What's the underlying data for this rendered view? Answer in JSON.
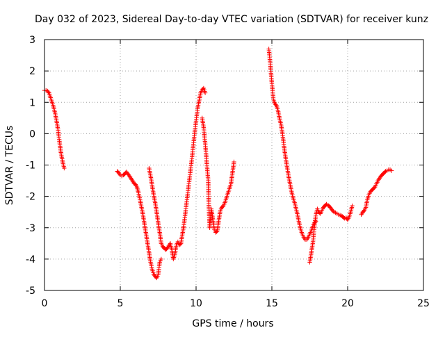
{
  "chart_data": {
    "type": "scatter",
    "title": "Day 032 of 2023, Sidereal Day-to-day VTEC variation (SDTVAR) for receiver kunz",
    "xlabel": "GPS time / hours",
    "ylabel": "SDTVAR / TECUs",
    "xlim": [
      0,
      25
    ],
    "ylim": [
      -5,
      3
    ],
    "x_ticks": [
      0,
      5,
      10,
      15,
      20,
      25
    ],
    "y_ticks": [
      -5,
      -4,
      -3,
      -2,
      -1,
      0,
      1,
      2,
      3
    ],
    "x_tick_labels": [
      "0",
      "5",
      "10",
      "15",
      "20",
      "25"
    ],
    "y_tick_labels": [
      "-5",
      "-4",
      "-3",
      "-2",
      "-1",
      "0",
      "1",
      "2",
      "3"
    ],
    "grid": true,
    "legend": "none",
    "marker": "plus",
    "color": "#ff0000",
    "series": [
      {
        "segments": [
          [
            [
              0.0,
              1.38
            ],
            [
              0.1,
              1.38
            ],
            [
              0.2,
              1.36
            ],
            [
              0.3,
              1.3
            ],
            [
              0.4,
              1.15
            ],
            [
              0.5,
              1.0
            ],
            [
              0.6,
              0.85
            ],
            [
              0.7,
              0.65
            ],
            [
              0.8,
              0.4
            ],
            [
              0.9,
              0.1
            ],
            [
              1.0,
              -0.3
            ],
            [
              1.1,
              -0.65
            ],
            [
              1.2,
              -0.9
            ],
            [
              1.3,
              -1.1
            ]
          ],
          [
            [
              4.8,
              -1.2
            ],
            [
              4.9,
              -1.25
            ],
            [
              5.0,
              -1.32
            ],
            [
              5.1,
              -1.35
            ],
            [
              5.2,
              -1.32
            ],
            [
              5.3,
              -1.28
            ],
            [
              5.4,
              -1.22
            ],
            [
              5.5,
              -1.28
            ],
            [
              5.6,
              -1.35
            ],
            [
              5.7,
              -1.42
            ],
            [
              5.8,
              -1.5
            ],
            [
              5.9,
              -1.58
            ],
            [
              6.0,
              -1.62
            ],
            [
              6.1,
              -1.7
            ],
            [
              6.2,
              -1.88
            ],
            [
              6.3,
              -2.1
            ],
            [
              6.4,
              -2.35
            ],
            [
              6.5,
              -2.6
            ],
            [
              6.6,
              -2.9
            ],
            [
              6.7,
              -3.2
            ],
            [
              6.8,
              -3.5
            ],
            [
              6.9,
              -3.8
            ],
            [
              7.0,
              -4.1
            ],
            [
              7.1,
              -4.32
            ],
            [
              7.2,
              -4.48
            ],
            [
              7.3,
              -4.55
            ],
            [
              7.4,
              -4.6
            ],
            [
              7.5,
              -4.5
            ],
            [
              7.6,
              -4.1
            ],
            [
              7.7,
              -4.0
            ]
          ],
          [
            [
              6.9,
              -1.1
            ],
            [
              7.0,
              -1.35
            ],
            [
              7.1,
              -1.65
            ],
            [
              7.2,
              -1.95
            ],
            [
              7.3,
              -2.2
            ],
            [
              7.4,
              -2.5
            ],
            [
              7.5,
              -2.85
            ],
            [
              7.6,
              -3.15
            ],
            [
              7.7,
              -3.5
            ],
            [
              7.8,
              -3.6
            ],
            [
              7.9,
              -3.65
            ],
            [
              8.0,
              -3.7
            ],
            [
              8.1,
              -3.65
            ],
            [
              8.2,
              -3.58
            ],
            [
              8.3,
              -3.5
            ],
            [
              8.4,
              -3.7
            ],
            [
              8.5,
              -4.0
            ],
            [
              8.6,
              -3.85
            ],
            [
              8.7,
              -3.55
            ],
            [
              8.8,
              -3.45
            ],
            [
              8.9,
              -3.55
            ],
            [
              9.0,
              -3.5
            ],
            [
              9.1,
              -3.2
            ],
            [
              9.2,
              -2.9
            ],
            [
              9.3,
              -2.5
            ],
            [
              9.4,
              -2.1
            ],
            [
              9.5,
              -1.7
            ],
            [
              9.6,
              -1.3
            ],
            [
              9.7,
              -0.9
            ],
            [
              9.8,
              -0.45
            ],
            [
              9.9,
              0.0
            ],
            [
              10.0,
              0.4
            ],
            [
              10.1,
              0.8
            ],
            [
              10.2,
              1.05
            ],
            [
              10.3,
              1.3
            ],
            [
              10.4,
              1.4
            ],
            [
              10.5,
              1.45
            ],
            [
              10.6,
              1.3
            ]
          ],
          [
            [
              10.4,
              0.5
            ],
            [
              10.5,
              0.2
            ],
            [
              10.6,
              -0.3
            ],
            [
              10.7,
              -0.9
            ],
            [
              10.8,
              -1.5
            ],
            [
              10.85,
              -2.4
            ],
            [
              10.9,
              -3.0
            ],
            [
              11.0,
              -2.4
            ],
            [
              11.1,
              -2.7
            ],
            [
              11.2,
              -3.05
            ],
            [
              11.3,
              -3.15
            ],
            [
              11.4,
              -3.1
            ],
            [
              11.5,
              -2.75
            ],
            [
              11.6,
              -2.45
            ],
            [
              11.7,
              -2.35
            ],
            [
              11.8,
              -2.3
            ],
            [
              11.9,
              -2.2
            ],
            [
              12.0,
              -2.05
            ],
            [
              12.1,
              -1.9
            ],
            [
              12.2,
              -1.75
            ],
            [
              12.3,
              -1.6
            ],
            [
              12.4,
              -1.25
            ],
            [
              12.5,
              -0.9
            ]
          ],
          [
            [
              14.8,
              2.7
            ],
            [
              14.9,
              2.2
            ],
            [
              15.0,
              1.6
            ],
            [
              15.1,
              1.1
            ],
            [
              15.2,
              0.95
            ],
            [
              15.3,
              0.9
            ],
            [
              15.4,
              0.75
            ],
            [
              15.5,
              0.5
            ],
            [
              15.6,
              0.3
            ],
            [
              15.7,
              0.0
            ],
            [
              15.8,
              -0.4
            ],
            [
              15.9,
              -0.75
            ],
            [
              16.0,
              -1.05
            ],
            [
              16.1,
              -1.35
            ],
            [
              16.2,
              -1.6
            ],
            [
              16.3,
              -1.85
            ],
            [
              16.4,
              -2.05
            ],
            [
              16.5,
              -2.2
            ],
            [
              16.6,
              -2.4
            ],
            [
              16.7,
              -2.6
            ],
            [
              16.8,
              -2.85
            ],
            [
              16.9,
              -3.05
            ],
            [
              17.0,
              -3.2
            ],
            [
              17.1,
              -3.3
            ],
            [
              17.2,
              -3.38
            ],
            [
              17.3,
              -3.38
            ],
            [
              17.4,
              -3.3
            ],
            [
              17.5,
              -3.2
            ],
            [
              17.6,
              -3.1
            ],
            [
              17.7,
              -2.95
            ],
            [
              17.8,
              -2.85
            ],
            [
              17.9,
              -2.8
            ]
          ],
          [
            [
              17.5,
              -4.1
            ],
            [
              17.6,
              -3.8
            ],
            [
              17.7,
              -3.5
            ],
            [
              17.8,
              -3.0
            ],
            [
              17.9,
              -2.6
            ],
            [
              18.0,
              -2.4
            ],
            [
              18.1,
              -2.5
            ],
            [
              18.2,
              -2.55
            ],
            [
              18.3,
              -2.45
            ],
            [
              18.4,
              -2.35
            ],
            [
              18.5,
              -2.3
            ],
            [
              18.6,
              -2.25
            ],
            [
              18.7,
              -2.28
            ],
            [
              18.8,
              -2.32
            ],
            [
              18.9,
              -2.38
            ],
            [
              19.0,
              -2.45
            ],
            [
              19.1,
              -2.5
            ],
            [
              19.2,
              -2.52
            ],
            [
              19.3,
              -2.55
            ],
            [
              19.4,
              -2.58
            ],
            [
              19.5,
              -2.6
            ],
            [
              19.6,
              -2.62
            ],
            [
              19.7,
              -2.66
            ],
            [
              19.8,
              -2.7
            ],
            [
              19.9,
              -2.68
            ],
            [
              20.0,
              -2.75
            ],
            [
              20.1,
              -2.65
            ],
            [
              20.2,
              -2.5
            ],
            [
              20.3,
              -2.3
            ]
          ],
          [
            [
              20.9,
              -2.58
            ],
            [
              21.0,
              -2.5
            ],
            [
              21.1,
              -2.45
            ],
            [
              21.2,
              -2.35
            ],
            [
              21.3,
              -2.1
            ],
            [
              21.4,
              -1.95
            ],
            [
              21.5,
              -1.85
            ],
            [
              21.6,
              -1.8
            ],
            [
              21.7,
              -1.75
            ],
            [
              21.8,
              -1.7
            ],
            [
              21.9,
              -1.6
            ],
            [
              22.0,
              -1.5
            ],
            [
              22.1,
              -1.42
            ],
            [
              22.2,
              -1.35
            ],
            [
              22.3,
              -1.3
            ],
            [
              22.4,
              -1.25
            ],
            [
              22.5,
              -1.2
            ],
            [
              22.6,
              -1.18
            ],
            [
              22.7,
              -1.15
            ],
            [
              22.8,
              -1.15
            ],
            [
              22.9,
              -1.18
            ]
          ]
        ]
      }
    ]
  }
}
